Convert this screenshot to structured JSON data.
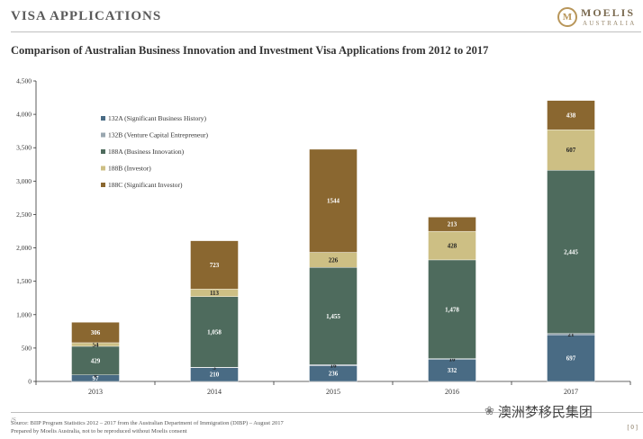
{
  "header": {
    "title": "VISA APPLICATIONS",
    "logo_mark": "M",
    "logo_name": "MOELIS",
    "logo_sub": "AUSTRALIA"
  },
  "footer": {
    "source": "Source: BIIP Program Statistics 2012 – 2017 from the Australian Department of Immigration (DIBP) – August 2017",
    "prepared": "Prepared by Moelis Australia, not to be reproduced without Moelis consent",
    "page_number": "[ 0 ]",
    "corner_mark": "/S"
  },
  "watermark": {
    "icon": "wechat-icon",
    "text": "澳洲梦移民集团"
  },
  "colors": {
    "s132A": "#496b84",
    "s132B": "#9aa7b0",
    "s188A": "#4e6b5d",
    "s188B": "#cdbf84",
    "s188C": "#8a6730"
  },
  "chart_data": {
    "type": "bar",
    "stacked": true,
    "title": "Comparison of Australian Business Innovation and Investment Visa Applications from 2012 to 2017",
    "xlabel": "",
    "ylabel": "",
    "ylim": [
      0,
      4500
    ],
    "yticks": [
      0,
      500,
      1000,
      1500,
      2000,
      2500,
      3000,
      3500,
      4000,
      4500
    ],
    "ytick_labels": [
      "0",
      "500",
      "1,000",
      "1,500",
      "2,000",
      "2,500",
      "3,000",
      "3,500",
      "4,000",
      "4,500"
    ],
    "categories": [
      "2013",
      "2014",
      "2015",
      "2016",
      "2017"
    ],
    "legend_position": "top-left",
    "series": [
      {
        "name": "132A (Significant Business History)",
        "key": "s132A",
        "values": [
          97,
          210,
          236,
          332,
          697
        ],
        "labels": [
          "97",
          "210",
          "236",
          "332",
          "697"
        ]
      },
      {
        "name": "132B (Venture Capital Entrepreneur)",
        "key": "s132B",
        "values": [
          0,
          3,
          16,
          10,
          21
        ],
        "labels": [
          "0",
          "3",
          "16",
          "10",
          "21"
        ]
      },
      {
        "name": "188A (Business Innovation)",
        "key": "s188A",
        "values": [
          429,
          1058,
          1455,
          1478,
          2445
        ],
        "labels": [
          "429",
          "1,058",
          "1,455",
          "1,478",
          "2,445"
        ]
      },
      {
        "name": "188B (Investor)",
        "key": "s188B",
        "values": [
          54,
          113,
          226,
          428,
          607
        ],
        "labels": [
          "54",
          "113",
          "226",
          "428",
          "607"
        ]
      },
      {
        "name": "188C (Significant Investor)",
        "key": "s188C",
        "values": [
          306,
          723,
          1544,
          213,
          438
        ],
        "labels": [
          "306",
          "723",
          "1544",
          "213",
          "438"
        ]
      }
    ]
  }
}
